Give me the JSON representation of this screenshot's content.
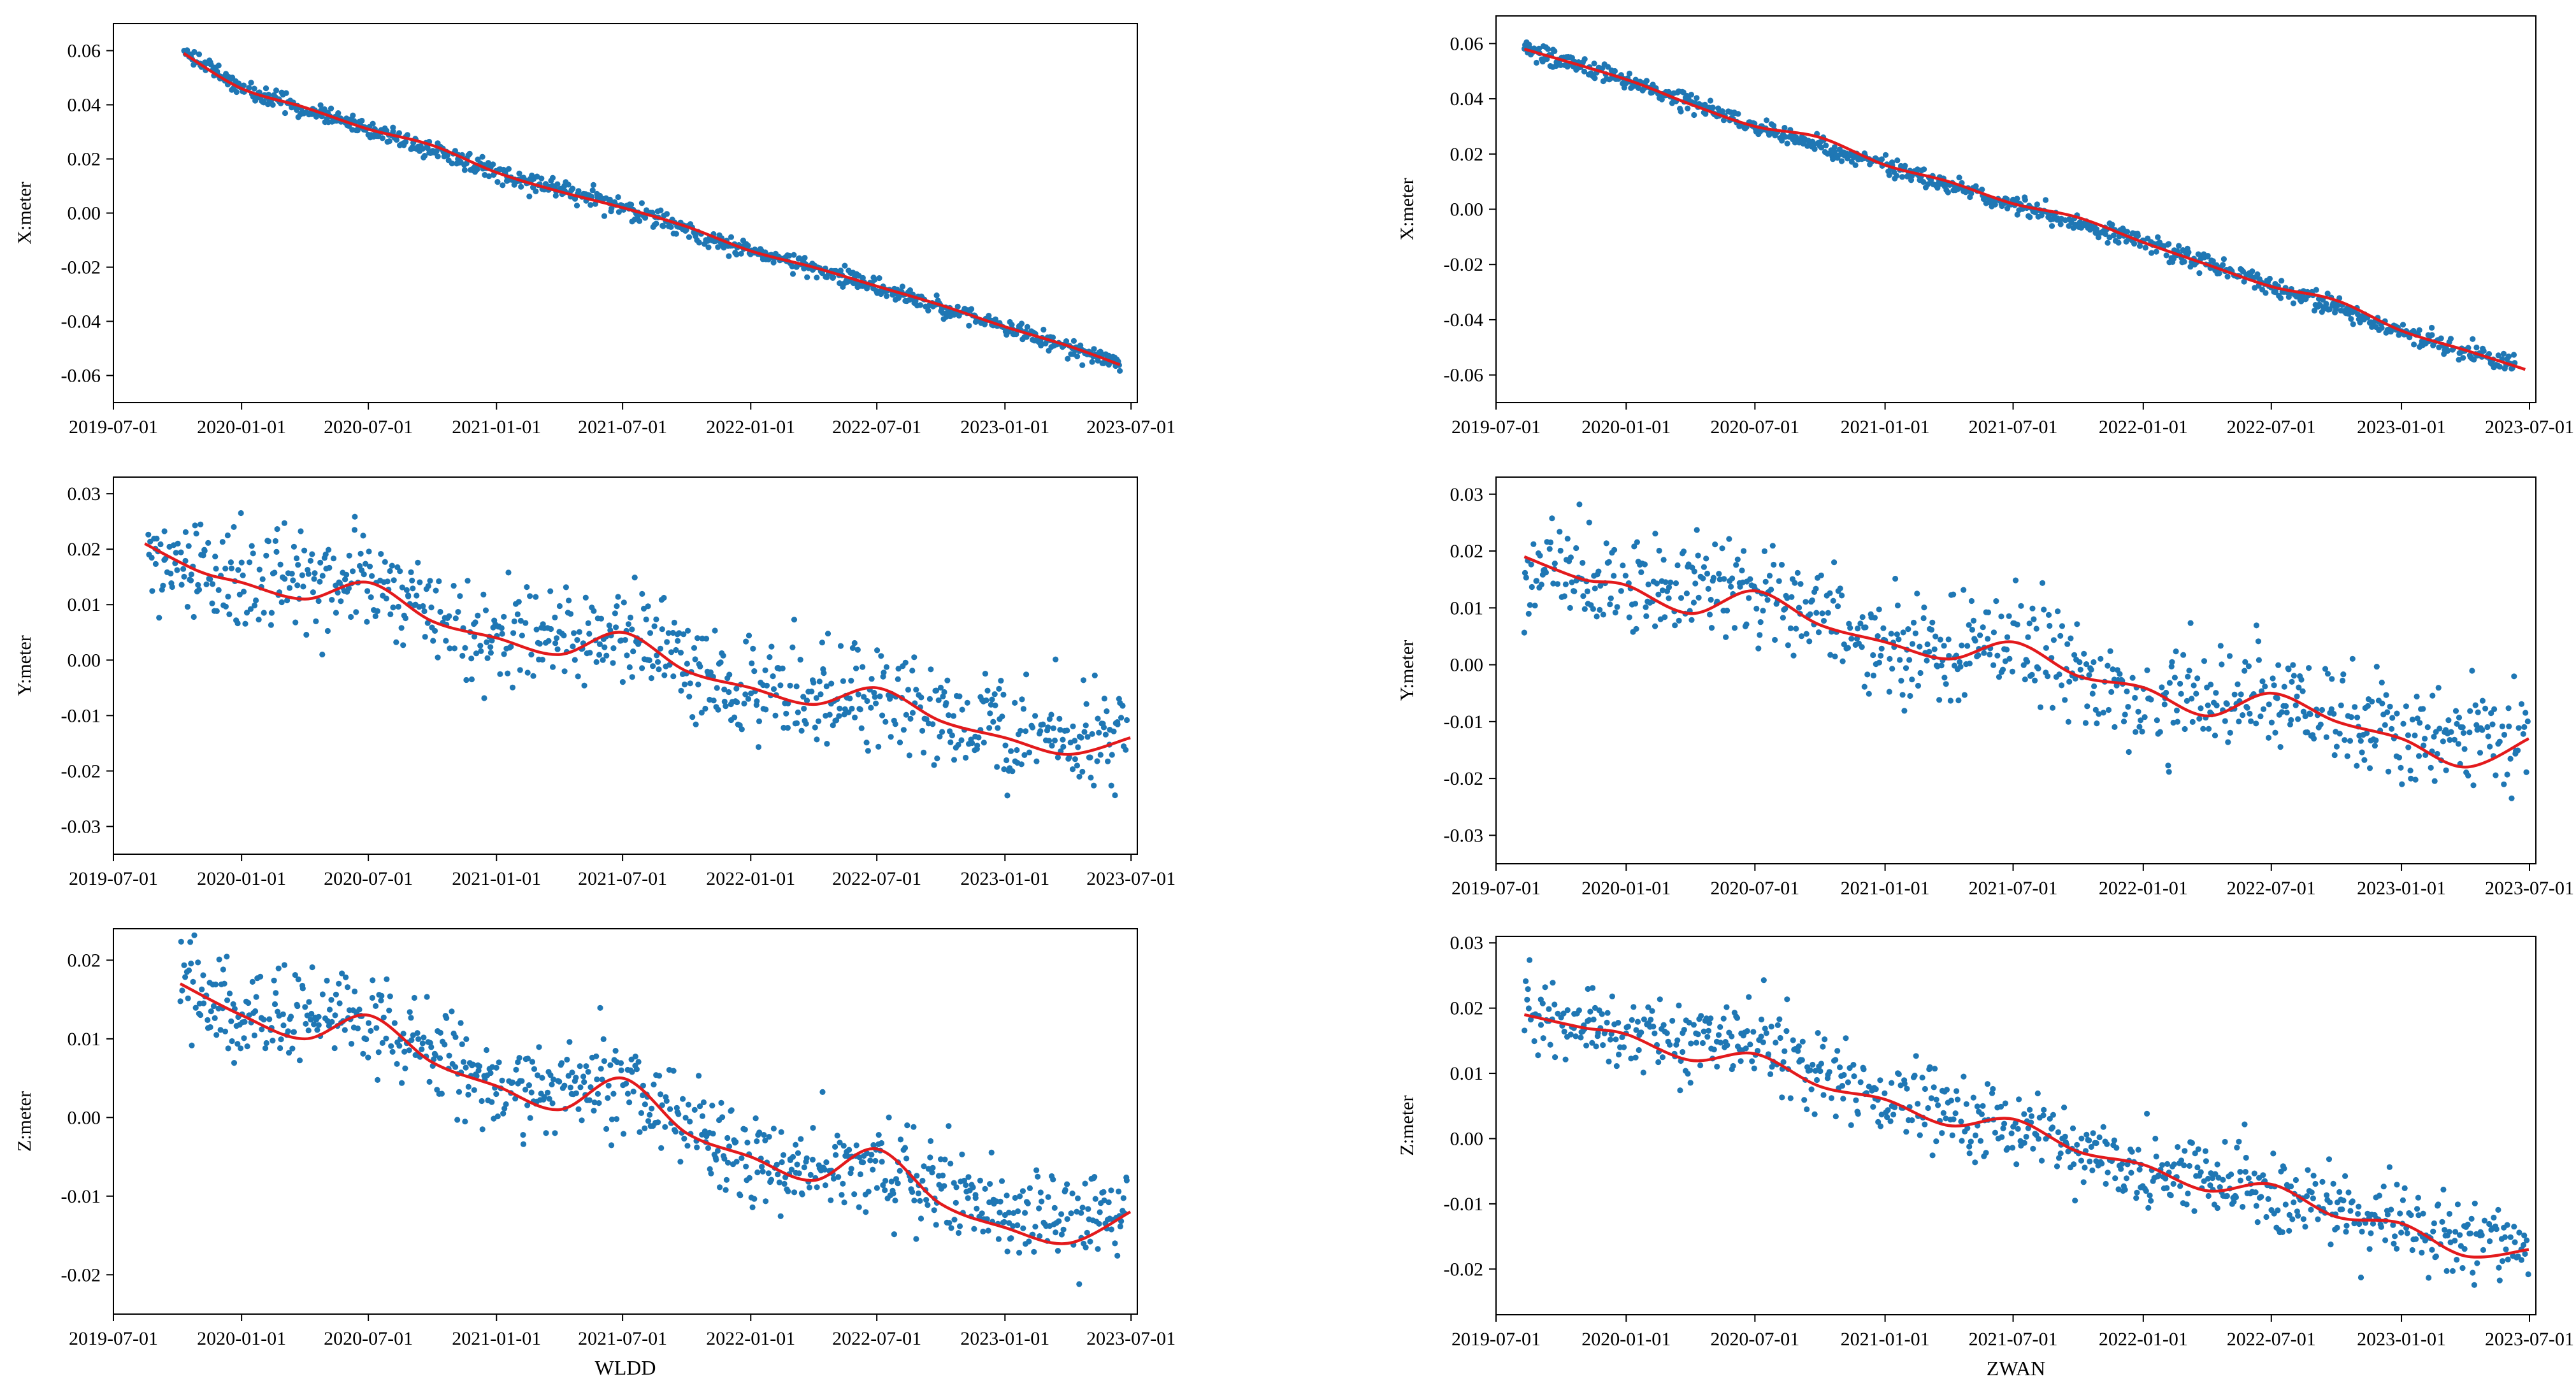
{
  "chart_data": [
    {
      "type": "scatter",
      "station": "WLDD",
      "ylabel": "X:meter",
      "ylim": [
        -0.07,
        0.07
      ],
      "yticks": [
        -0.06,
        -0.04,
        -0.02,
        0.0,
        0.02,
        0.04,
        0.06
      ],
      "ytick_labels": [
        "-0.06",
        "-0.04",
        "-0.02",
        "0.00",
        "0.02",
        "0.04",
        "0.06"
      ],
      "xlim": [
        "2019-07-01",
        "2023-07-10"
      ],
      "xticks": [
        "2019-07-01",
        "2020-01-01",
        "2020-07-01",
        "2021-01-01",
        "2021-07-01",
        "2022-01-01",
        "2022-07-01",
        "2023-01-01",
        "2023-07-01"
      ],
      "scatter_color": "#1f77b4",
      "fit_color": "#e31a1c",
      "fit_line": [
        [
          "2019-10-10",
          0.059
        ],
        [
          "2020-01-01",
          0.046
        ],
        [
          "2020-04-01",
          0.039
        ],
        [
          "2020-07-01",
          0.031
        ],
        [
          "2020-10-01",
          0.025
        ],
        [
          "2021-01-01",
          0.015
        ],
        [
          "2021-04-01",
          0.008
        ],
        [
          "2021-07-01",
          0.002
        ],
        [
          "2021-10-01",
          -0.005
        ],
        [
          "2022-01-01",
          -0.014
        ],
        [
          "2022-04-01",
          -0.02
        ],
        [
          "2022-07-01",
          -0.027
        ],
        [
          "2022-10-01",
          -0.034
        ],
        [
          "2023-01-01",
          -0.042
        ],
        [
          "2023-04-01",
          -0.049
        ],
        [
          "2023-06-15",
          -0.056
        ]
      ],
      "scatter_trend": [
        [
          "2019-10-10",
          0.059
        ],
        [
          "2020-01-01",
          0.046
        ],
        [
          "2020-07-01",
          0.031
        ],
        [
          "2021-01-01",
          0.015
        ],
        [
          "2021-07-01",
          0.002
        ],
        [
          "2022-01-01",
          -0.014
        ],
        [
          "2022-07-01",
          -0.027
        ],
        [
          "2023-01-01",
          -0.042
        ],
        [
          "2023-06-15",
          -0.056
        ]
      ],
      "scatter_range": [
        "2019-10-10",
        "2023-06-15"
      ],
      "scatter_spread": 0.004
    },
    {
      "type": "scatter",
      "station": "ZWAN",
      "ylabel": "X:meter",
      "ylim": [
        -0.07,
        0.07
      ],
      "yticks": [
        -0.06,
        -0.04,
        -0.02,
        0.0,
        0.02,
        0.04,
        0.06
      ],
      "ytick_labels": [
        "-0.06",
        "-0.04",
        "-0.02",
        "0.00",
        "0.02",
        "0.04",
        "0.06"
      ],
      "xlim": [
        "2019-07-01",
        "2023-07-10"
      ],
      "xticks": [
        "2019-07-01",
        "2020-01-01",
        "2020-07-01",
        "2021-01-01",
        "2021-07-01",
        "2022-01-01",
        "2022-07-01",
        "2023-01-01",
        "2023-07-01"
      ],
      "scatter_color": "#1f77b4",
      "fit_color": "#e31a1c",
      "fit_line": [
        [
          "2019-08-10",
          0.058
        ],
        [
          "2020-01-01",
          0.047
        ],
        [
          "2020-04-01",
          0.038
        ],
        [
          "2020-07-01",
          0.03
        ],
        [
          "2020-10-01",
          0.026
        ],
        [
          "2021-01-01",
          0.016
        ],
        [
          "2021-04-01",
          0.01
        ],
        [
          "2021-07-01",
          0.002
        ],
        [
          "2021-10-01",
          -0.003
        ],
        [
          "2022-01-01",
          -0.012
        ],
        [
          "2022-04-01",
          -0.02
        ],
        [
          "2022-07-01",
          -0.028
        ],
        [
          "2022-10-01",
          -0.033
        ],
        [
          "2023-01-01",
          -0.044
        ],
        [
          "2023-04-01",
          -0.051
        ],
        [
          "2023-06-25",
          -0.058
        ]
      ],
      "scatter_trend": [
        [
          "2019-08-10",
          0.058
        ],
        [
          "2020-01-01",
          0.047
        ],
        [
          "2020-07-01",
          0.03
        ],
        [
          "2021-01-01",
          0.016
        ],
        [
          "2021-07-01",
          0.002
        ],
        [
          "2022-01-01",
          -0.012
        ],
        [
          "2022-07-01",
          -0.028
        ],
        [
          "2023-01-01",
          -0.044
        ],
        [
          "2023-06-10",
          -0.057
        ]
      ],
      "scatter_range": [
        "2019-08-10",
        "2023-06-10"
      ],
      "scatter_spread": 0.004
    },
    {
      "type": "scatter",
      "station": "WLDD",
      "ylabel": "Y:meter",
      "ylim": [
        -0.035,
        0.033
      ],
      "yticks": [
        -0.03,
        -0.02,
        -0.01,
        0.0,
        0.01,
        0.02,
        0.03
      ],
      "ytick_labels": [
        "-0.03",
        "-0.02",
        "-0.01",
        "0.00",
        "0.01",
        "0.02",
        "0.03"
      ],
      "xlim": [
        "2019-07-01",
        "2023-07-10"
      ],
      "xticks": [
        "2019-07-01",
        "2020-01-01",
        "2020-07-01",
        "2021-01-01",
        "2021-07-01",
        "2022-01-01",
        "2022-07-01",
        "2023-01-01",
        "2023-07-01"
      ],
      "scatter_color": "#1f77b4",
      "fit_color": "#e31a1c",
      "fit_line": [
        [
          "2019-08-15",
          0.021
        ],
        [
          "2019-11-01",
          0.016
        ],
        [
          "2020-01-01",
          0.014
        ],
        [
          "2020-04-01",
          0.011
        ],
        [
          "2020-07-01",
          0.014
        ],
        [
          "2020-10-01",
          0.007
        ],
        [
          "2021-01-01",
          0.004
        ],
        [
          "2021-04-01",
          0.001
        ],
        [
          "2021-07-01",
          0.005
        ],
        [
          "2021-10-01",
          -0.002
        ],
        [
          "2022-01-01",
          -0.005
        ],
        [
          "2022-04-01",
          -0.008
        ],
        [
          "2022-07-01",
          -0.005
        ],
        [
          "2022-10-01",
          -0.011
        ],
        [
          "2023-01-01",
          -0.014
        ],
        [
          "2023-04-01",
          -0.017
        ],
        [
          "2023-06-30",
          -0.014
        ]
      ],
      "scatter_trend": [
        [
          "2019-08-20",
          0.018
        ],
        [
          "2020-01-01",
          0.014
        ],
        [
          "2020-07-01",
          0.014
        ],
        [
          "2021-01-01",
          0.004
        ],
        [
          "2021-07-01",
          0.005
        ],
        [
          "2022-01-01",
          -0.006
        ],
        [
          "2022-07-01",
          -0.006
        ],
        [
          "2023-01-01",
          -0.013
        ],
        [
          "2023-06-25",
          -0.014
        ]
      ],
      "scatter_range": [
        "2019-08-20",
        "2023-06-25"
      ],
      "scatter_spread": 0.011
    },
    {
      "type": "scatter",
      "station": "ZWAN",
      "ylabel": "Y:meter",
      "ylim": [
        -0.035,
        0.033
      ],
      "yticks": [
        -0.03,
        -0.02,
        -0.01,
        0.0,
        0.01,
        0.02,
        0.03
      ],
      "ytick_labels": [
        "-0.03",
        "-0.02",
        "-0.01",
        "0.00",
        "0.01",
        "0.02",
        "0.03"
      ],
      "xlim": [
        "2019-07-01",
        "2023-07-10"
      ],
      "xticks": [
        "2019-07-01",
        "2020-01-01",
        "2020-07-01",
        "2021-01-01",
        "2021-07-01",
        "2022-01-01",
        "2022-07-01",
        "2023-01-01",
        "2023-07-01"
      ],
      "scatter_color": "#1f77b4",
      "fit_color": "#e31a1c",
      "fit_line": [
        [
          "2019-08-10",
          0.019
        ],
        [
          "2019-11-01",
          0.015
        ],
        [
          "2020-01-01",
          0.014
        ],
        [
          "2020-04-01",
          0.009
        ],
        [
          "2020-07-01",
          0.013
        ],
        [
          "2020-10-01",
          0.007
        ],
        [
          "2021-01-01",
          0.004
        ],
        [
          "2021-04-01",
          0.001
        ],
        [
          "2021-07-01",
          0.004
        ],
        [
          "2021-10-01",
          -0.002
        ],
        [
          "2022-01-01",
          -0.004
        ],
        [
          "2022-04-01",
          -0.009
        ],
        [
          "2022-07-01",
          -0.005
        ],
        [
          "2022-10-01",
          -0.01
        ],
        [
          "2023-01-01",
          -0.013
        ],
        [
          "2023-04-01",
          -0.018
        ],
        [
          "2023-06-30",
          -0.013
        ]
      ],
      "scatter_trend": [
        [
          "2019-08-10",
          0.018
        ],
        [
          "2020-01-01",
          0.014
        ],
        [
          "2020-07-01",
          0.014
        ],
        [
          "2021-01-01",
          0.004
        ],
        [
          "2021-07-01",
          0.004
        ],
        [
          "2022-01-01",
          -0.006
        ],
        [
          "2022-07-01",
          -0.006
        ],
        [
          "2023-01-01",
          -0.012
        ],
        [
          "2023-06-30",
          -0.013
        ]
      ],
      "scatter_range": [
        "2019-08-10",
        "2023-06-30"
      ],
      "scatter_spread": 0.011
    },
    {
      "type": "scatter",
      "station": "WLDD",
      "ylabel": "Z:meter",
      "ylim": [
        -0.025,
        0.024
      ],
      "yticks": [
        -0.02,
        -0.01,
        0.0,
        0.01,
        0.02
      ],
      "ytick_labels": [
        "-0.02",
        "-0.01",
        "0.00",
        "0.01",
        "0.02"
      ],
      "xlim": [
        "2019-07-01",
        "2023-07-10"
      ],
      "xticks": [
        "2019-07-01",
        "2020-01-01",
        "2020-07-01",
        "2021-01-01",
        "2021-07-01",
        "2022-01-01",
        "2022-07-01",
        "2023-01-01",
        "2023-07-01"
      ],
      "xlabel": "WLDD",
      "scatter_color": "#1f77b4",
      "fit_color": "#e31a1c",
      "fit_line": [
        [
          "2019-10-05",
          0.017
        ],
        [
          "2020-01-01",
          0.013
        ],
        [
          "2020-04-01",
          0.01
        ],
        [
          "2020-07-01",
          0.013
        ],
        [
          "2020-10-01",
          0.007
        ],
        [
          "2021-01-01",
          0.004
        ],
        [
          "2021-04-01",
          0.001
        ],
        [
          "2021-07-01",
          0.005
        ],
        [
          "2021-10-01",
          -0.002
        ],
        [
          "2022-01-01",
          -0.005
        ],
        [
          "2022-04-01",
          -0.008
        ],
        [
          "2022-07-01",
          -0.004
        ],
        [
          "2022-10-01",
          -0.011
        ],
        [
          "2023-01-01",
          -0.014
        ],
        [
          "2023-04-01",
          -0.016
        ],
        [
          "2023-06-30",
          -0.012
        ]
      ],
      "scatter_trend": [
        [
          "2019-10-05",
          0.017
        ],
        [
          "2020-01-01",
          0.013
        ],
        [
          "2020-07-01",
          0.013
        ],
        [
          "2021-01-01",
          0.004
        ],
        [
          "2021-07-01",
          0.004
        ],
        [
          "2022-01-01",
          -0.006
        ],
        [
          "2022-07-01",
          -0.006
        ],
        [
          "2023-01-01",
          -0.013
        ],
        [
          "2023-06-25",
          -0.012
        ]
      ],
      "scatter_range": [
        "2019-10-05",
        "2023-06-25"
      ],
      "scatter_spread": 0.007
    },
    {
      "type": "scatter",
      "station": "ZWAN",
      "ylabel": "Z:meter",
      "ylim": [
        -0.027,
        0.031
      ],
      "yticks": [
        -0.02,
        -0.01,
        0.0,
        0.01,
        0.02,
        0.03
      ],
      "ytick_labels": [
        "-0.02",
        "-0.01",
        "0.00",
        "0.01",
        "0.02",
        "0.03"
      ],
      "xlim": [
        "2019-07-01",
        "2023-07-10"
      ],
      "xticks": [
        "2019-07-01",
        "2020-01-01",
        "2020-07-01",
        "2021-01-01",
        "2021-07-01",
        "2022-01-01",
        "2022-07-01",
        "2023-01-01",
        "2023-07-01"
      ],
      "xlabel": "ZWAN",
      "scatter_color": "#1f77b4",
      "fit_color": "#e31a1c",
      "fit_line": [
        [
          "2019-08-10",
          0.019
        ],
        [
          "2019-11-01",
          0.017
        ],
        [
          "2020-01-01",
          0.016
        ],
        [
          "2020-04-01",
          0.012
        ],
        [
          "2020-07-01",
          0.013
        ],
        [
          "2020-10-01",
          0.008
        ],
        [
          "2021-01-01",
          0.006
        ],
        [
          "2021-04-01",
          0.002
        ],
        [
          "2021-07-01",
          0.003
        ],
        [
          "2021-10-01",
          -0.002
        ],
        [
          "2022-01-01",
          -0.004
        ],
        [
          "2022-04-01",
          -0.008
        ],
        [
          "2022-07-01",
          -0.007
        ],
        [
          "2022-10-01",
          -0.012
        ],
        [
          "2023-01-01",
          -0.013
        ],
        [
          "2023-04-01",
          -0.018
        ],
        [
          "2023-06-30",
          -0.017
        ]
      ],
      "scatter_trend": [
        [
          "2019-08-10",
          0.02
        ],
        [
          "2020-01-01",
          0.016
        ],
        [
          "2020-07-01",
          0.015
        ],
        [
          "2021-01-01",
          0.006
        ],
        [
          "2021-07-01",
          0.002
        ],
        [
          "2022-01-01",
          -0.005
        ],
        [
          "2022-07-01",
          -0.008
        ],
        [
          "2023-01-01",
          -0.013
        ],
        [
          "2023-06-30",
          -0.017
        ]
      ],
      "scatter_range": [
        "2019-08-10",
        "2023-06-30"
      ],
      "scatter_spread": 0.007
    }
  ]
}
